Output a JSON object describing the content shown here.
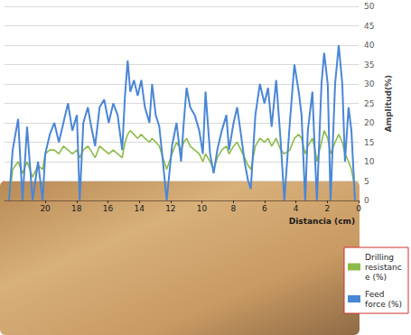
{
  "chart_data": {
    "type": "line",
    "x_label": "Distancia (cm)",
    "y_label": "Amplitud(%)",
    "x": [
      22.31,
      22.08,
      21.73,
      21.45,
      21.16,
      20.81,
      20.46,
      20.17,
      20.0,
      19.71,
      19.42,
      19.13,
      18.84,
      18.55,
      18.27,
      17.98,
      17.8,
      17.57,
      17.28,
      17.11,
      16.82,
      16.53,
      16.24,
      15.95,
      15.66,
      15.38,
      15.09,
      14.91,
      14.74,
      14.57,
      14.34,
      14.1,
      13.87,
      13.64,
      13.35,
      13.18,
      12.95,
      12.72,
      12.49,
      12.25,
      11.91,
      11.62,
      11.33,
      11.16,
      10.98,
      10.75,
      10.46,
      10.17,
      9.94,
      9.77,
      9.48,
      9.25,
      9.02,
      8.73,
      8.44,
      8.27,
      7.98,
      7.75,
      7.51,
      7.28,
      7.05,
      6.88,
      6.59,
      6.3,
      6.01,
      5.78,
      5.55,
      5.26,
      4.97,
      4.74,
      4.39,
      4.1,
      3.82,
      3.64,
      3.41,
      3.24,
      2.95,
      2.77,
      2.66,
      2.37,
      2.2,
      1.97,
      1.79,
      1.5,
      1.27,
      1.04,
      0.87,
      0.64,
      0.46,
      0.23
    ],
    "series": [
      {
        "name": "Drilling resistance (%)",
        "color": "#8cbb4a",
        "values": [
          0,
          8,
          10,
          7,
          10,
          6,
          9,
          8,
          12,
          13,
          13,
          12,
          14,
          13,
          12,
          13,
          11,
          13,
          14,
          13,
          11,
          14,
          13,
          12,
          13,
          12,
          11,
          15,
          17,
          18,
          17,
          16,
          17,
          16,
          15,
          16,
          15,
          14,
          11,
          8,
          12,
          15,
          13,
          15,
          16,
          14,
          13,
          12,
          10,
          12,
          10,
          8,
          11,
          13,
          14,
          12,
          14,
          15,
          13,
          11,
          9,
          8,
          14,
          16,
          15,
          16,
          14,
          16,
          13,
          12,
          13,
          16,
          17,
          16,
          12,
          14,
          16,
          13,
          10,
          15,
          18,
          16,
          12,
          15,
          17,
          15,
          12,
          10,
          8,
          3
        ]
      },
      {
        "name": "Feed force (%)",
        "color": "#4a86d6",
        "values": [
          0,
          13,
          21,
          0,
          19,
          0,
          10,
          0,
          12,
          17,
          20,
          15,
          20,
          25,
          18,
          22,
          0,
          20,
          24,
          20,
          14,
          24,
          26,
          20,
          25,
          22,
          13,
          27,
          36,
          28,
          31,
          27,
          31,
          24,
          20,
          30,
          22,
          19,
          10,
          0,
          14,
          20,
          10,
          20,
          29,
          24,
          22,
          18,
          12,
          28,
          12,
          7,
          13,
          18,
          22,
          13,
          20,
          24,
          17,
          10,
          5,
          3,
          22,
          30,
          25,
          29,
          19,
          31,
          15,
          0,
          20,
          35,
          28,
          22,
          0,
          18,
          28,
          10,
          0,
          30,
          38,
          30,
          0,
          30,
          40,
          30,
          10,
          24,
          18,
          0
        ]
      }
    ],
    "xlim": [
      22.6,
      0
    ],
    "xticks": [
      0,
      2,
      4,
      6,
      8,
      10,
      12,
      14,
      16,
      18,
      20
    ],
    "ylim": [
      0,
      50
    ],
    "yticks": [
      0,
      5,
      10,
      15,
      20,
      25,
      30,
      35,
      40,
      45,
      50
    ],
    "grid": true,
    "legend": "bottom-right"
  }
}
